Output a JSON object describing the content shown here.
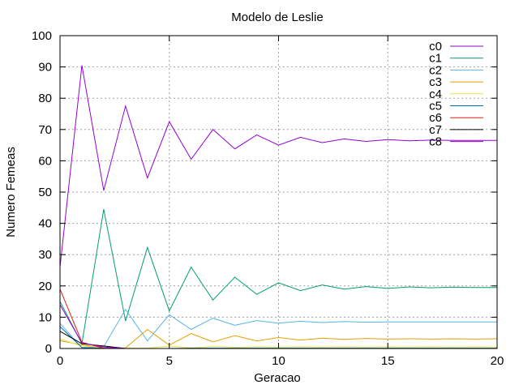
{
  "chart_data": {
    "type": "line",
    "title": "Modelo de Leslie",
    "xlabel": "Geracao",
    "ylabel": "Numero Femeas",
    "xlim": [
      0,
      20
    ],
    "ylim": [
      0,
      100
    ],
    "xticks": [
      0,
      5,
      10,
      15,
      20
    ],
    "yticks": [
      0,
      10,
      20,
      30,
      40,
      50,
      60,
      70,
      80,
      90,
      100
    ],
    "grid": true,
    "legend_position": "top-right",
    "x": [
      0,
      1,
      2,
      3,
      4,
      5,
      6,
      7,
      8,
      9,
      10,
      11,
      12,
      13,
      14,
      15,
      16,
      17,
      18,
      19,
      20
    ],
    "series": [
      {
        "name": "c0",
        "color": "#9400d3",
        "values": [
          26,
          90.5,
          50.5,
          77.5,
          54.5,
          72.5,
          60.5,
          70,
          63.8,
          68.3,
          65,
          67.5,
          65.8,
          67,
          66.2,
          66.8,
          66.4,
          66.6,
          66.5,
          66.5,
          66.5
        ]
      },
      {
        "name": "c1",
        "color": "#009e73",
        "values": [
          15,
          1.5,
          44.5,
          8.8,
          32.3,
          12,
          26,
          15.5,
          22.8,
          17.3,
          21,
          18.5,
          20.3,
          19,
          19.8,
          19.2,
          19.7,
          19.4,
          19.6,
          19.5,
          19.5
        ]
      },
      {
        "name": "c2",
        "color": "#56b4e9",
        "values": [
          8,
          0.2,
          0.6,
          12.5,
          2.4,
          10.8,
          6.1,
          9.7,
          7.4,
          8.9,
          8.1,
          8.7,
          8.3,
          8.6,
          8.4,
          8.5,
          8.5,
          8.5,
          8.5,
          8.5,
          8.5
        ]
      },
      {
        "name": "c3",
        "color": "#e69f00",
        "values": [
          2.5,
          1.2,
          0.1,
          0.2,
          6.1,
          1.1,
          4.8,
          2.1,
          4.1,
          2.4,
          3.5,
          2.7,
          3.3,
          2.9,
          3.2,
          3,
          3.1,
          3,
          3.1,
          3,
          3.1
        ]
      },
      {
        "name": "c4",
        "color": "#f0e442",
        "values": [
          3,
          0.8,
          0.2,
          0.1,
          0.1,
          0.8,
          0.2,
          0.7,
          0.4,
          0.6,
          0.5,
          0.6,
          0.5,
          0.6,
          0.5,
          0.6,
          0.5,
          0.6,
          0.5,
          0.6,
          0.5
        ]
      },
      {
        "name": "c5",
        "color": "#0072b2",
        "values": [
          7,
          0.3,
          0.1,
          0,
          0,
          0,
          0.1,
          0.1,
          0.1,
          0.1,
          0.1,
          0.1,
          0.1,
          0.1,
          0.1,
          0.1,
          0.1,
          0.1,
          0.1,
          0.1,
          0.1
        ]
      },
      {
        "name": "c6",
        "color": "#e51e10",
        "values": [
          19,
          2,
          0.1,
          0,
          0,
          0,
          0,
          0,
          0,
          0,
          0,
          0,
          0,
          0,
          0,
          0,
          0,
          0,
          0,
          0,
          0
        ]
      },
      {
        "name": "c7",
        "color": "#000000",
        "values": [
          5.5,
          1.5,
          0.8,
          0,
          0,
          0,
          0,
          0,
          0,
          0,
          0,
          0,
          0,
          0,
          0,
          0,
          0,
          0,
          0,
          0,
          0
        ]
      },
      {
        "name": "c8",
        "color": "#9400d3",
        "values": [
          14,
          1.8,
          0.5,
          0,
          0,
          0,
          0,
          0,
          0,
          0,
          0,
          0,
          0,
          0,
          0,
          0,
          0,
          0,
          0,
          0,
          0
        ]
      }
    ]
  }
}
